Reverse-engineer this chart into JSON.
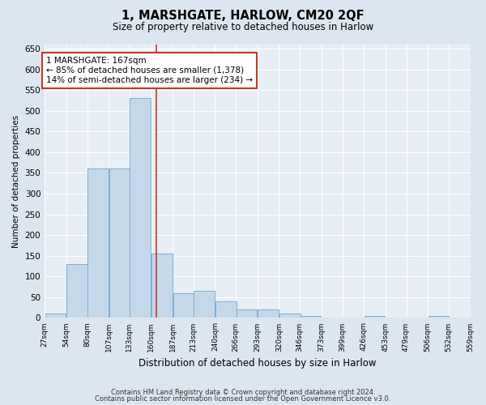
{
  "title": "1, MARSHGATE, HARLOW, CM20 2QF",
  "subtitle": "Size of property relative to detached houses in Harlow",
  "xlabel": "Distribution of detached houses by size in Harlow",
  "ylabel": "Number of detached properties",
  "footer_line1": "Contains HM Land Registry data © Crown copyright and database right 2024.",
  "footer_line2": "Contains public sector information licensed under the Open Government Licence v3.0.",
  "bar_color": "#c5d8ea",
  "bar_edge_color": "#7bafd4",
  "annotation_line1": "1 MARSHGATE: 167sqm",
  "annotation_line2": "← 85% of detached houses are smaller (1,378)",
  "annotation_line3": "14% of semi-detached houses are larger (234) →",
  "vline_x": 167,
  "vline_color": "#c0392b",
  "annotation_box_color": "#c0392b",
  "bins": [
    27,
    54,
    80,
    107,
    133,
    160,
    187,
    213,
    240,
    266,
    293,
    320,
    346,
    373,
    399,
    426,
    453,
    479,
    506,
    532,
    559
  ],
  "bar_heights": [
    10,
    130,
    360,
    360,
    530,
    155,
    60,
    65,
    40,
    20,
    20,
    10,
    5,
    0,
    0,
    5,
    0,
    0,
    5,
    0,
    5
  ],
  "ylim": [
    0,
    660
  ],
  "yticks": [
    0,
    50,
    100,
    150,
    200,
    250,
    300,
    350,
    400,
    450,
    500,
    550,
    600,
    650
  ],
  "bg_color": "#dce6f0",
  "plot_bg_color": "#e8eef5",
  "grid_color": "#ffffff",
  "figsize": [
    6.0,
    5.0
  ],
  "dpi": 100
}
